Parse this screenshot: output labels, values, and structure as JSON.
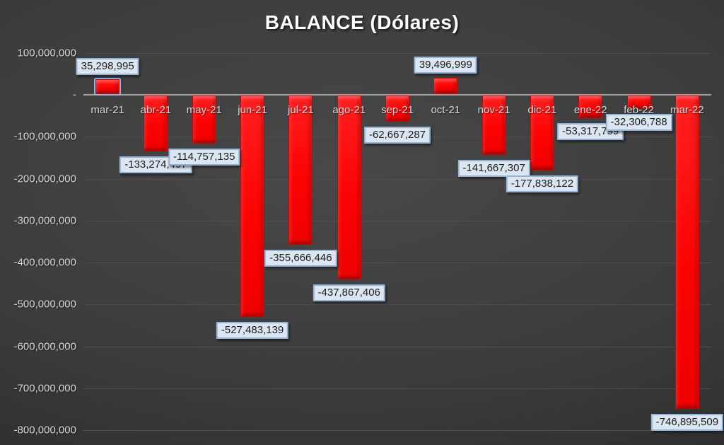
{
  "title": "BALANCE (Dólares)",
  "chart_data": {
    "type": "bar",
    "title": "BALANCE (Dólares)",
    "categories": [
      "mar-21",
      "abr-21",
      "may-21",
      "jun-21",
      "jul-21",
      "ago-21",
      "sep-21",
      "oct-21",
      "nov-21",
      "dic-21",
      "ene-22",
      "feb-22",
      "mar-22"
    ],
    "values": [
      35298995,
      -133274497,
      -114757135,
      -527483139,
      -355666446,
      -437867406,
      -62667287,
      39496999,
      -141667307,
      -177838122,
      -53317799,
      -32306788,
      -746895509
    ],
    "labels": [
      "35,298,995",
      "-133,274,497",
      "-114,757,135",
      "-527,483,139",
      "-355,666,446",
      "-437,867,406",
      "-62,667,287",
      "39,496,999",
      "-141,667,307",
      "-177,838,122",
      "-53,317,799",
      "-32,306,788",
      "-746,895,509"
    ],
    "xlabel": "",
    "ylabel": "",
    "ylim": [
      -800000000,
      100000000
    ],
    "y_tick_interval": 100000000,
    "y_ticks": [
      "100,000,000",
      "-",
      "-100,000,000",
      "-200,000,000",
      "-300,000,000",
      "-400,000,000",
      "-500,000,000",
      "-600,000,000",
      "-700,000,000",
      "-800,000,000"
    ],
    "grid": true,
    "legend": false,
    "selected_category": "mar-21"
  },
  "colors": {
    "bar": "#fb0303",
    "label_bg": "#dce6f1",
    "label_border": "#95b3d7",
    "label_text": "#1c1c1c",
    "background_center": "#484848",
    "background_edge": "#232323",
    "gridline": "#4e4e4e",
    "axis_line": "#a3a3a3",
    "tick_text": "#d9d9d9",
    "title_text": "#ffffff",
    "selection_outline": "#8db4e2"
  }
}
